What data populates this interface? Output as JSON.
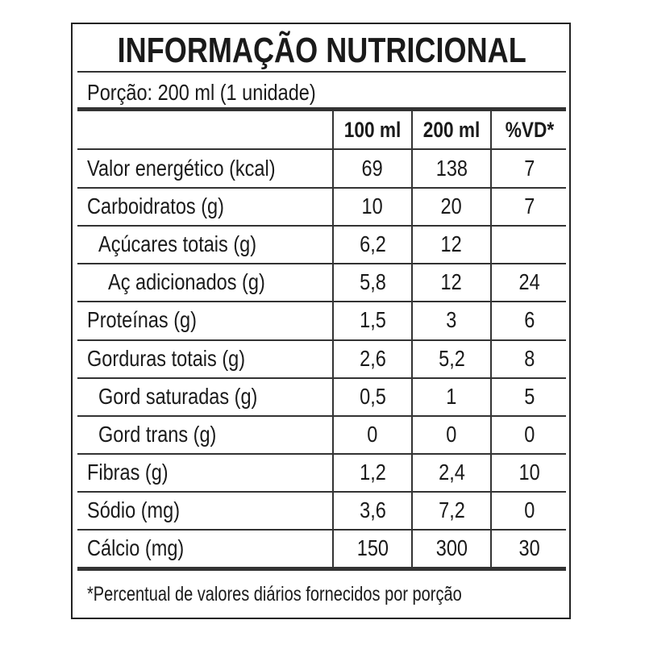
{
  "title": "INFORMAÇÃO NUTRICIONAL",
  "portion": "Porção: 200 ml (1 unidade)",
  "columns": [
    "100 ml",
    "200 ml",
    "%VD*"
  ],
  "rows": [
    {
      "label": "Valor energético (kcal)",
      "indent": 0,
      "v100": "69",
      "v200": "138",
      "vd": "7"
    },
    {
      "label": "Carboidratos (g)",
      "indent": 0,
      "v100": "10",
      "v200": "20",
      "vd": "7"
    },
    {
      "label": "Açúcares totais (g)",
      "indent": 1,
      "v100": "6,2",
      "v200": "12",
      "vd": ""
    },
    {
      "label": "Aç adicionados (g)",
      "indent": 2,
      "v100": "5,8",
      "v200": "12",
      "vd": "24"
    },
    {
      "label": "Proteínas (g)",
      "indent": 0,
      "v100": "1,5",
      "v200": "3",
      "vd": "6"
    },
    {
      "label": "Gorduras totais (g)",
      "indent": 0,
      "v100": "2,6",
      "v200": "5,2",
      "vd": "8"
    },
    {
      "label": "Gord saturadas (g)",
      "indent": 1,
      "v100": "0,5",
      "v200": "1",
      "vd": "5"
    },
    {
      "label": "Gord trans (g)",
      "indent": 1,
      "v100": "0",
      "v200": "0",
      "vd": "0"
    },
    {
      "label": "Fibras (g)",
      "indent": 0,
      "v100": "1,2",
      "v200": "2,4",
      "vd": "10"
    },
    {
      "label": "Sódio (mg)",
      "indent": 0,
      "v100": "3,6",
      "v200": "7,2",
      "vd": "0"
    },
    {
      "label": "Cálcio (mg)",
      "indent": 0,
      "v100": "150",
      "v200": "300",
      "vd": "30"
    }
  ],
  "footnote": "*Percentual de valores diários fornecidos por porção"
}
